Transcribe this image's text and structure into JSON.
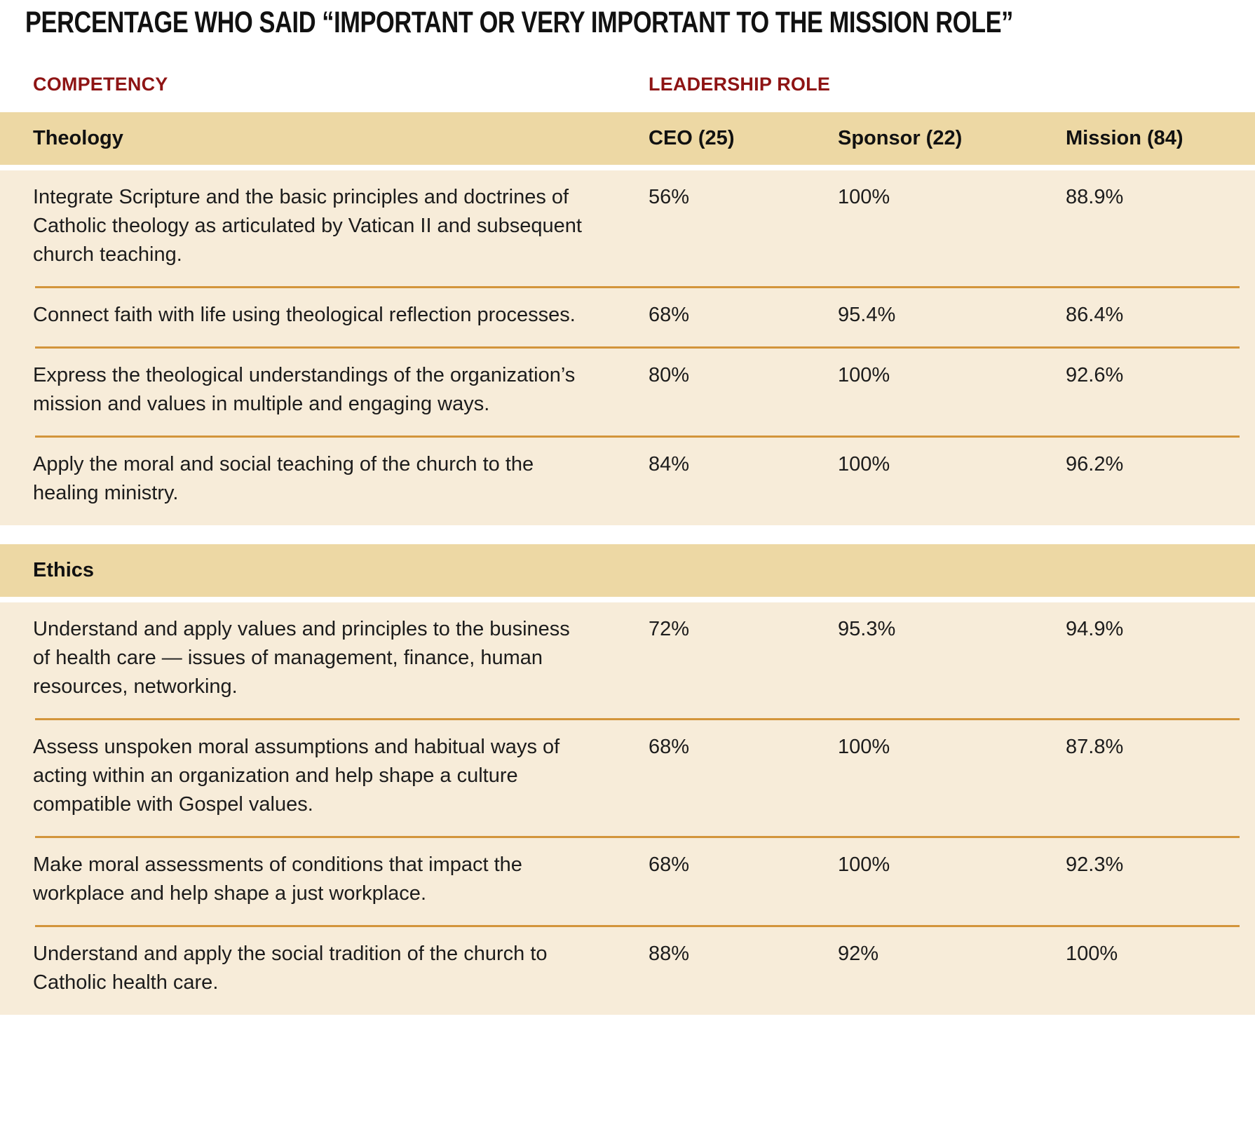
{
  "title": "PERCENTAGE WHO SAID “IMPORTANT OR VERY IMPORTANT TO THE MISSION ROLE”",
  "column_group_headers": {
    "competency": "COMPETENCY",
    "leadership_role": "LEADERSHIP ROLE"
  },
  "columns": [
    "CEO (25)",
    "Sponsor (22)",
    "Mission (84)"
  ],
  "colors": {
    "section_band": "#edd8a4",
    "table_body": "#f7ecd9",
    "divider": "#d3953b",
    "heading_red": "#8e1414",
    "text": "#1c1c1c"
  },
  "chart_data": {
    "type": "table",
    "title": "PERCENTAGE WHO SAID “IMPORTANT OR VERY IMPORTANT TO THE MISSION ROLE”",
    "columns": [
      "CEO (25)",
      "Sponsor (22)",
      "Mission (84)"
    ],
    "sections": [
      {
        "name": "Theology",
        "rows": [
          {
            "competency": "Integrate Scripture and the basic principles and doctrines of Catholic theology as articulated by Vatican II and subsequent church teaching.",
            "values": [
              "56%",
              "100%",
              "88.9%"
            ]
          },
          {
            "competency": "Connect faith with life using theological reflection processes.",
            "values": [
              "68%",
              "95.4%",
              "86.4%"
            ]
          },
          {
            "competency": "Express the theological understandings of the organization’s mission and values in multiple and engaging ways.",
            "values": [
              "80%",
              "100%",
              "92.6%"
            ]
          },
          {
            "competency": "Apply the moral and social teaching of the church to the healing ministry.",
            "values": [
              "84%",
              "100%",
              "96.2%"
            ]
          }
        ]
      },
      {
        "name": "Ethics",
        "rows": [
          {
            "competency": "Understand and apply values and principles to the business of health care — issues of management, finance, human resources, networking.",
            "values": [
              "72%",
              "95.3%",
              "94.9%"
            ]
          },
          {
            "competency": "Assess unspoken moral assumptions and habitual ways of acting within an organization and help shape a culture compatible with Gospel values.",
            "values": [
              "68%",
              "100%",
              "87.8%"
            ]
          },
          {
            "competency": "Make moral assessments of conditions that impact the workplace and help shape a just workplace.",
            "values": [
              "68%",
              "100%",
              "92.3%"
            ]
          },
          {
            "competency": "Understand and apply the social tradition of the church to Catholic health care.",
            "values": [
              "88%",
              "92%",
              "100%"
            ]
          }
        ]
      }
    ]
  }
}
